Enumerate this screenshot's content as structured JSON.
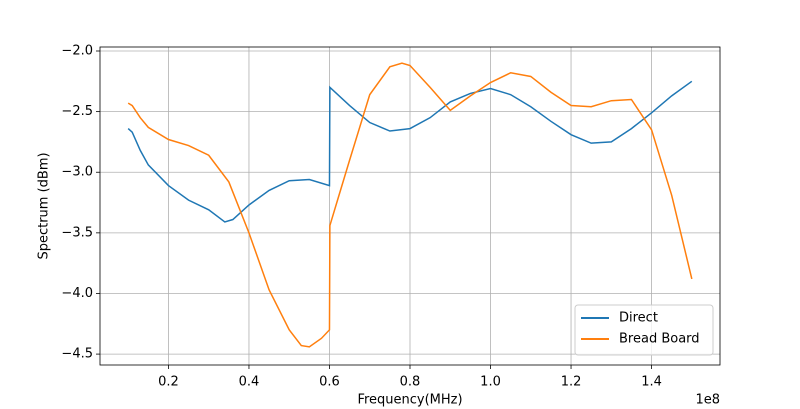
{
  "chart_data": {
    "type": "line",
    "x_label": "Frequency(MHz)",
    "y_label": "Spectrum (dBm)",
    "x_offset_text": "1e8",
    "xlim": [
      0.03,
      1.57
    ],
    "ylim": [
      -4.59,
      -1.967
    ],
    "xticks": [
      0.2,
      0.4,
      0.6,
      0.8,
      {
        "value": 1,
        "label": "1.0"
      },
      1.2,
      1.4
    ],
    "yticks": [
      {
        "value": -2,
        "label": "−2.0"
      },
      {
        "value": -2.5,
        "label": "−2.5"
      },
      {
        "value": -3,
        "label": "−3.0"
      },
      {
        "value": -3.5,
        "label": "−3.5"
      },
      {
        "value": -4,
        "label": "−4.0"
      },
      {
        "value": -4.5,
        "label": "−4.5"
      }
    ],
    "grid": true,
    "legend": "lower right",
    "series": [
      {
        "name": "Direct",
        "color": "#1f77b4",
        "x": [
          0.1,
          0.11,
          0.13,
          0.15,
          0.2,
          0.25,
          0.3,
          0.34,
          0.36,
          0.4,
          0.45,
          0.5,
          0.55,
          0.6,
          0.601,
          0.65,
          0.7,
          0.75,
          0.8,
          0.85,
          0.9,
          0.95,
          1.0,
          1.05,
          1.1,
          1.15,
          1.2,
          1.25,
          1.3,
          1.35,
          1.4,
          1.45,
          1.5
        ],
        "values": [
          -2.64,
          -2.67,
          -2.82,
          -2.94,
          -3.11,
          -3.23,
          -3.31,
          -3.41,
          -3.39,
          -3.27,
          -3.15,
          -3.07,
          -3.06,
          -3.11,
          -2.3,
          -2.45,
          -2.59,
          -2.66,
          -2.64,
          -2.55,
          -2.42,
          -2.35,
          -2.31,
          -2.36,
          -2.46,
          -2.58,
          -2.69,
          -2.76,
          -2.75,
          -2.64,
          -2.51,
          -2.37,
          -2.25
        ]
      },
      {
        "name": "Bread Board",
        "color": "#ff7f0e",
        "x": [
          0.1,
          0.11,
          0.13,
          0.15,
          0.2,
          0.25,
          0.3,
          0.35,
          0.4,
          0.45,
          0.5,
          0.53,
          0.55,
          0.58,
          0.6,
          0.601,
          0.62,
          0.65,
          0.7,
          0.75,
          0.78,
          0.8,
          0.85,
          0.9,
          0.95,
          1.0,
          1.05,
          1.1,
          1.15,
          1.2,
          1.25,
          1.3,
          1.35,
          1.4,
          1.45,
          1.5
        ],
        "values": [
          -2.43,
          -2.45,
          -2.55,
          -2.63,
          -2.73,
          -2.78,
          -2.86,
          -3.08,
          -3.5,
          -3.97,
          -4.3,
          -4.43,
          -4.44,
          -4.37,
          -4.3,
          -3.44,
          -3.23,
          -2.9,
          -2.36,
          -2.13,
          -2.1,
          -2.12,
          -2.3,
          -2.49,
          -2.37,
          -2.26,
          -2.18,
          -2.21,
          -2.34,
          -2.45,
          -2.46,
          -2.41,
          -2.4,
          -2.65,
          -3.19,
          -3.88
        ]
      }
    ]
  }
}
